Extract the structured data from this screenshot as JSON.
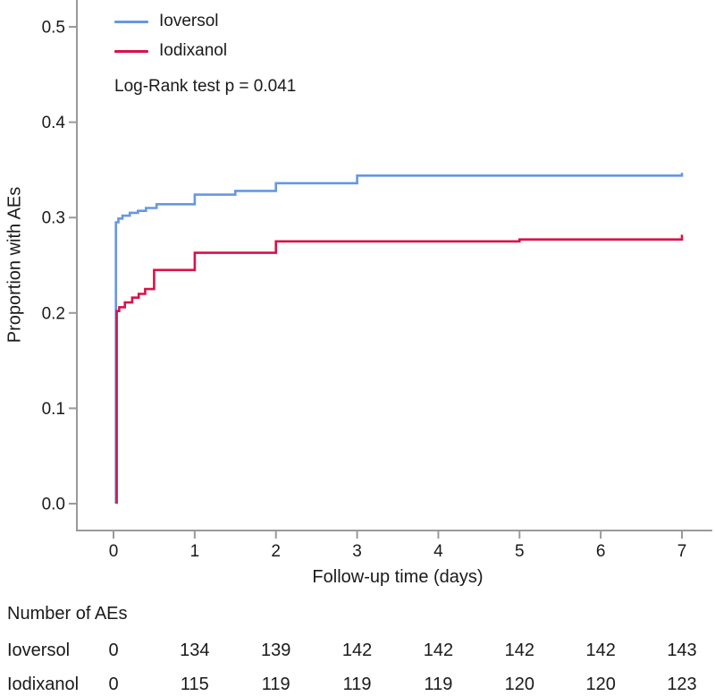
{
  "chart_data": {
    "type": "line",
    "subtype": "kaplan-meier-step-curve",
    "xlabel": "Follow-up time (days)",
    "ylabel": "Proportion with AEs",
    "xlim": [
      0,
      7
    ],
    "ylim": [
      0.0,
      0.5
    ],
    "xticks": [
      "0",
      "1",
      "2",
      "3",
      "4",
      "5",
      "6",
      "7"
    ],
    "yticks": [
      "0.0",
      "0.1",
      "0.2",
      "0.3",
      "0.4",
      "0.5"
    ],
    "grid": false,
    "legend_position": "top-left",
    "annotation": "Log-Rank test p = 0.041",
    "series": [
      {
        "name": "Ioversol",
        "color": "#6697E2",
        "start": [
          0.03,
          0.0
        ],
        "steps": [
          [
            0.03,
            0.295
          ],
          [
            0.06,
            0.299
          ],
          [
            0.11,
            0.302
          ],
          [
            0.2,
            0.305
          ],
          [
            0.3,
            0.307
          ],
          [
            0.4,
            0.31
          ],
          [
            0.53,
            0.314
          ],
          [
            1.0,
            0.324
          ],
          [
            1.5,
            0.328
          ],
          [
            2.0,
            0.336
          ],
          [
            3.0,
            0.344
          ],
          [
            7.0,
            0.347
          ]
        ]
      },
      {
        "name": "Iodixanol",
        "color": "#D6124A",
        "start": [
          0.04,
          0.0
        ],
        "steps": [
          [
            0.04,
            0.202
          ],
          [
            0.07,
            0.206
          ],
          [
            0.14,
            0.211
          ],
          [
            0.23,
            0.216
          ],
          [
            0.31,
            0.22
          ],
          [
            0.39,
            0.225
          ],
          [
            0.5,
            0.245
          ],
          [
            1.0,
            0.263
          ],
          [
            2.0,
            0.275
          ],
          [
            5.0,
            0.277
          ],
          [
            7.0,
            0.282
          ]
        ]
      }
    ]
  },
  "risk_table": {
    "title": "Number of AEs",
    "times": [
      0,
      1,
      2,
      3,
      4,
      5,
      6,
      7
    ],
    "rows": [
      {
        "label": "Ioversol",
        "values": [
          "0",
          "134",
          "139",
          "142",
          "142",
          "142",
          "142",
          "143"
        ]
      },
      {
        "label": "Iodixanol",
        "values": [
          "0",
          "115",
          "119",
          "119",
          "119",
          "120",
          "120",
          "123"
        ]
      }
    ]
  },
  "colors": {
    "axis": "#9A9A9A",
    "text": "#1A1A1A",
    "ioversol_line": "#6697E2",
    "iodixanol_line": "#D6124A"
  }
}
